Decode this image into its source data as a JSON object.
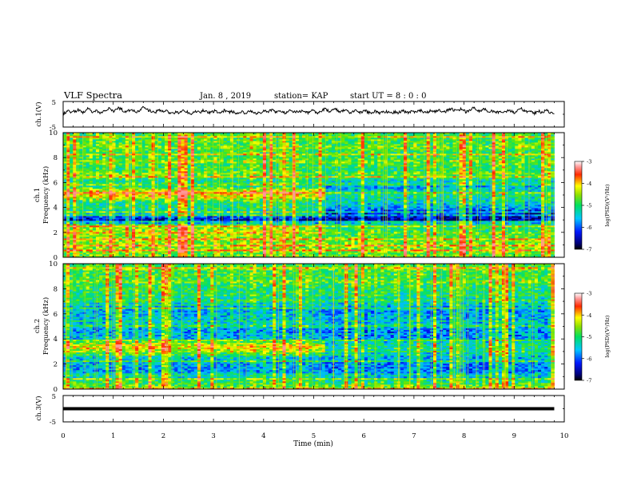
{
  "header": {
    "title": "VLF Spectra",
    "date": "Jan. 8 , 2019",
    "station": "station= KAP",
    "start": "start UT =  8 : 0 : 0"
  },
  "chart_data": [
    {
      "type": "line",
      "name": "ch1-waveform",
      "ylabel": "ch.1(V)",
      "ylim": [
        -5,
        5
      ],
      "yticks": [
        {
          "v": 5,
          "label": "5"
        },
        {
          "v": -5,
          "label": "-5"
        }
      ],
      "xlim": [
        0,
        10
      ],
      "x_end": 9.8,
      "samples": [
        0.3,
        0.8,
        1.2,
        0.6,
        1.4,
        0.9,
        1.8,
        1.1,
        0.7,
        1.5,
        2.2,
        1.3,
        0.9,
        1.6,
        1.0,
        0.4,
        0.9,
        1.6,
        2.4,
        1.9,
        1.2,
        1.8,
        2.6,
        2.0,
        1.4,
        0.9,
        1.5,
        2.1,
        1.3,
        0.8,
        1.2,
        1.9,
        2.8,
        2.2,
        1.5,
        1.1,
        0.6,
        1.0,
        1.7,
        1.2,
        0.8,
        1.3,
        0.7,
        0.2,
        0.6,
        1.1,
        0.5,
        0.9,
        1.4,
        1.0,
        0.6,
        0.3,
        0.8,
        1.2,
        0.7,
        1.1,
        1.6,
        1.0,
        0.6,
        0.9,
        1.3,
        0.8,
        0.4,
        0.9,
        1.5,
        1.1,
        0.7,
        1.2,
        0.6,
        0.3,
        0.7,
        1.0,
        0.5,
        0.8,
        1.2,
        0.9,
        0.5,
        0.2,
        0.6,
        1.0,
        1.4,
        0.9,
        1.3,
        1.8,
        1.2,
        0.8,
        1.1,
        0.7,
        0.4,
        0.9,
        1.3,
        0.8,
        1.2,
        0.7,
        1.0,
        1.5,
        1.0,
        0.6,
        1.1,
        1.6,
        1.0,
        0.6,
        1.0,
        1.5,
        2.1,
        1.6,
        1.0,
        1.4,
        2.0,
        1.5,
        0.9,
        1.3,
        1.8,
        1.2,
        0.7,
        1.1,
        1.6,
        1.1,
        0.6,
        1.0,
        1.4,
        0.9,
        0.5,
        0.8,
        1.2,
        0.8,
        0.4,
        0.7,
        1.1,
        0.7,
        0.3,
        0.6,
        1.0,
        0.6,
        0.9,
        1.3,
        0.8,
        0.5,
        0.9,
        1.2,
        0.7,
        1.1,
        1.5,
        1.0,
        0.6,
        0.9,
        1.4,
        0.9,
        1.3,
        1.8,
        1.2,
        0.8,
        1.2,
        1.7,
        2.3,
        1.7,
        1.1,
        1.5,
        2.0,
        1.4,
        0.9,
        1.3,
        1.9,
        2.5,
        1.8,
        1.2,
        1.6,
        2.2,
        1.5,
        1.0,
        1.4,
        0.9,
        0.5,
        0.9,
        1.3,
        0.8,
        1.2,
        1.7,
        1.1,
        0.7,
        1.1,
        1.6,
        2.1,
        1.5,
        1.0,
        1.4,
        0.8,
        0.4,
        0.8,
        1.2,
        0.7,
        1.1,
        1.5,
        0.9,
        0.3,
        -0.2
      ]
    },
    {
      "type": "heatmap",
      "name": "ch1-spectrogram",
      "ylabel": "ch.1",
      "ylabel2": "Frequency (kHz)",
      "ylim": [
        0,
        10
      ],
      "xlim": [
        0,
        10
      ],
      "x_end": 9.8,
      "yticks": [
        0,
        2,
        4,
        6,
        8,
        10
      ],
      "change_time": 5.2,
      "level_profile_before": [
        [
          0,
          0.55
        ],
        [
          0.3,
          0.55
        ],
        [
          0.5,
          0.62
        ],
        [
          0.8,
          0.58
        ],
        [
          1.0,
          0.6
        ],
        [
          1.3,
          0.6
        ],
        [
          1.6,
          0.58
        ],
        [
          2.0,
          0.64
        ],
        [
          2.3,
          0.62
        ],
        [
          2.6,
          0.55
        ],
        [
          2.8,
          0.22
        ],
        [
          3.0,
          0.05
        ],
        [
          3.3,
          0.2
        ],
        [
          3.5,
          0.36
        ],
        [
          3.8,
          0.4
        ],
        [
          4.0,
          0.44
        ],
        [
          4.3,
          0.42
        ],
        [
          4.5,
          0.48
        ],
        [
          4.8,
          0.64
        ],
        [
          5.0,
          0.72
        ],
        [
          5.4,
          0.66
        ],
        [
          5.7,
          0.42
        ],
        [
          6.0,
          0.3
        ],
        [
          6.3,
          0.48
        ],
        [
          6.6,
          0.55
        ],
        [
          7.0,
          0.48
        ],
        [
          7.4,
          0.5
        ],
        [
          8.0,
          0.5
        ],
        [
          8.6,
          0.5
        ],
        [
          9.2,
          0.52
        ],
        [
          10,
          0.5
        ]
      ],
      "level_profile_after": [
        [
          0,
          0.55
        ],
        [
          0.3,
          0.55
        ],
        [
          0.5,
          0.62
        ],
        [
          0.8,
          0.58
        ],
        [
          1.0,
          0.6
        ],
        [
          1.3,
          0.58
        ],
        [
          1.6,
          0.55
        ],
        [
          2.0,
          0.5
        ],
        [
          2.3,
          0.48
        ],
        [
          2.6,
          0.42
        ],
        [
          2.8,
          0.3
        ],
        [
          3.0,
          0.04
        ],
        [
          3.3,
          0.08
        ],
        [
          3.5,
          0.12
        ],
        [
          3.8,
          0.2
        ],
        [
          4.0,
          0.28
        ],
        [
          4.3,
          0.34
        ],
        [
          4.5,
          0.38
        ],
        [
          4.8,
          0.4
        ],
        [
          5.0,
          0.42
        ],
        [
          5.4,
          0.36
        ],
        [
          5.7,
          0.28
        ],
        [
          6.0,
          0.25
        ],
        [
          6.3,
          0.44
        ],
        [
          6.6,
          0.5
        ],
        [
          7.0,
          0.46
        ],
        [
          7.4,
          0.5
        ],
        [
          8.0,
          0.5
        ],
        [
          8.6,
          0.5
        ],
        [
          9.2,
          0.52
        ],
        [
          10,
          0.5
        ]
      ],
      "colorbar": {
        "label": "log(PSD)(V²/Hz)",
        "ticks": [
          -3,
          -4,
          -5,
          -6,
          -7
        ]
      }
    },
    {
      "type": "heatmap",
      "name": "ch2-spectrogram",
      "ylabel": "ch.2",
      "ylabel2": "Frequency (kHz)",
      "ylim": [
        0,
        10
      ],
      "xlim": [
        0,
        10
      ],
      "x_end": 9.8,
      "yticks": [
        0,
        2,
        4,
        6,
        8,
        10
      ],
      "change_time": 5.2,
      "level_profile_before": [
        [
          0,
          0.55
        ],
        [
          0.3,
          0.55
        ],
        [
          0.6,
          0.5
        ],
        [
          1.0,
          0.36
        ],
        [
          1.5,
          0.28
        ],
        [
          2.0,
          0.3
        ],
        [
          2.5,
          0.34
        ],
        [
          3.0,
          0.55
        ],
        [
          3.3,
          0.7
        ],
        [
          3.6,
          0.66
        ],
        [
          4.0,
          0.34
        ],
        [
          4.5,
          0.26
        ],
        [
          5.0,
          0.3
        ],
        [
          5.5,
          0.34
        ],
        [
          6.0,
          0.32
        ],
        [
          6.5,
          0.3
        ],
        [
          7.0,
          0.4
        ],
        [
          7.5,
          0.45
        ],
        [
          8.0,
          0.48
        ],
        [
          8.5,
          0.5
        ],
        [
          9.0,
          0.52
        ],
        [
          10,
          0.52
        ]
      ],
      "level_profile_after": [
        [
          0,
          0.55
        ],
        [
          0.3,
          0.55
        ],
        [
          0.6,
          0.45
        ],
        [
          1.0,
          0.3
        ],
        [
          1.5,
          0.22
        ],
        [
          2.0,
          0.25
        ],
        [
          2.5,
          0.3
        ],
        [
          3.0,
          0.38
        ],
        [
          3.3,
          0.44
        ],
        [
          3.6,
          0.4
        ],
        [
          4.0,
          0.28
        ],
        [
          4.5,
          0.22
        ],
        [
          5.0,
          0.26
        ],
        [
          5.5,
          0.3
        ],
        [
          6.0,
          0.28
        ],
        [
          6.5,
          0.26
        ],
        [
          7.0,
          0.36
        ],
        [
          7.5,
          0.42
        ],
        [
          8.0,
          0.46
        ],
        [
          8.5,
          0.48
        ],
        [
          9.0,
          0.5
        ],
        [
          10,
          0.5
        ]
      ],
      "colorbar": {
        "label": "log(PSD)(V²/Hz)",
        "ticks": [
          -3,
          -4,
          -5,
          -6,
          -7
        ]
      }
    },
    {
      "type": "line",
      "name": "ch3-waveform",
      "ylabel": "ch.3(V)",
      "ylim": [
        -5,
        5
      ],
      "yticks": [
        {
          "v": 5,
          "label": "5"
        },
        {
          "v": -5,
          "label": "-5"
        }
      ],
      "xlim": [
        0,
        10
      ],
      "x_end": 9.8,
      "constant_value": 0,
      "xlabel": "Time (min)",
      "xticks": [
        0,
        1,
        2,
        3,
        4,
        5,
        6,
        7,
        8,
        9,
        10
      ]
    }
  ]
}
